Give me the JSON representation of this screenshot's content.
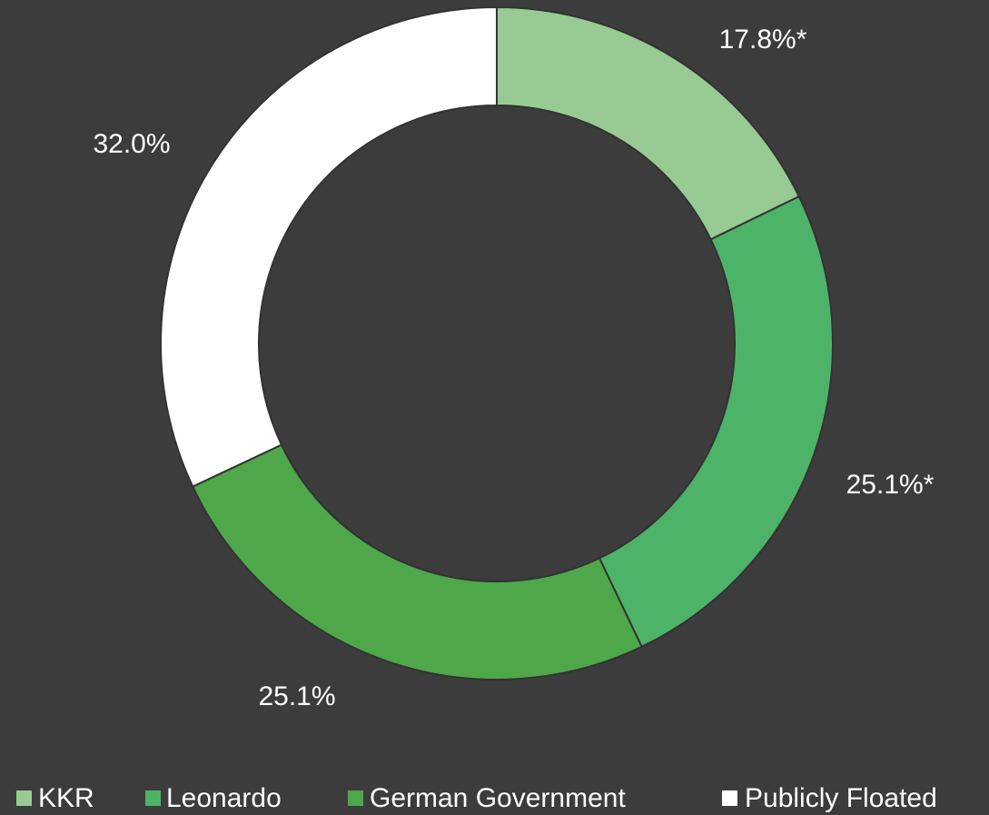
{
  "chart_data": {
    "type": "donut",
    "categories": [
      "KKR",
      "Leonardo",
      "German Government",
      "Publicly Floated"
    ],
    "values": [
      17.8,
      25.1,
      25.1,
      32.0
    ],
    "value_labels": [
      "17.8%*",
      "25.1%*",
      "25.1%",
      "32.0%"
    ],
    "colors": [
      "#97cb93",
      "#4db368",
      "#4ea84a",
      "#ffffff"
    ],
    "legend": "bottom"
  }
}
